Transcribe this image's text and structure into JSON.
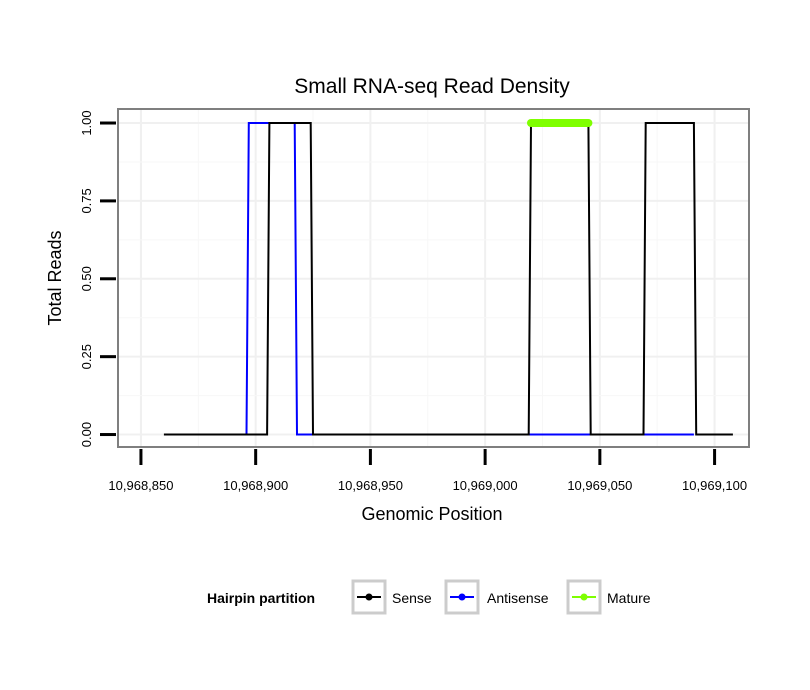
{
  "chart_data": {
    "type": "line",
    "title": "Small RNA-seq Read Density",
    "xlabel": "Genomic Position",
    "ylabel": "Total Reads",
    "xlim": [
      10968840,
      10969115
    ],
    "ylim": [
      -0.04,
      1.045
    ],
    "x_ticks": [
      10968850,
      10968900,
      10968950,
      10969000,
      10969050,
      10969100
    ],
    "x_tick_labels": [
      "10,968,850",
      "10,968,900",
      "10,968,950",
      "10,969,000",
      "10,969,050",
      "10,969,100"
    ],
    "y_ticks": [
      0,
      0.25,
      0.5,
      0.75,
      1.0
    ],
    "y_tick_labels": [
      "0.00",
      "0.25",
      "0.50",
      "0.75",
      "1.00"
    ],
    "grid": true,
    "legend": {
      "title": "Hairpin partition",
      "position": "bottom"
    },
    "series": [
      {
        "name": "Sense",
        "color": "#000000",
        "x": [
          10968860,
          10968905,
          10968906,
          10968924,
          10968925,
          10969019,
          10969020,
          10969045,
          10969046,
          10969069,
          10969070,
          10969091,
          10969092,
          10969108
        ],
        "y": [
          0,
          0,
          1,
          1,
          0,
          0,
          1,
          1,
          0,
          0,
          1,
          1,
          0,
          0
        ]
      },
      {
        "name": "Antisense",
        "color": "#0000ff",
        "x": [
          10968896,
          10968897,
          10968917,
          10968918,
          10969020,
          10969045,
          10969070,
          10969091
        ],
        "y": [
          0,
          1,
          1,
          0,
          0,
          0,
          0,
          0
        ]
      },
      {
        "name": "Mature",
        "color": "#7fff00",
        "x": [
          10969020,
          10969045
        ],
        "y": [
          1,
          1
        ]
      }
    ]
  }
}
